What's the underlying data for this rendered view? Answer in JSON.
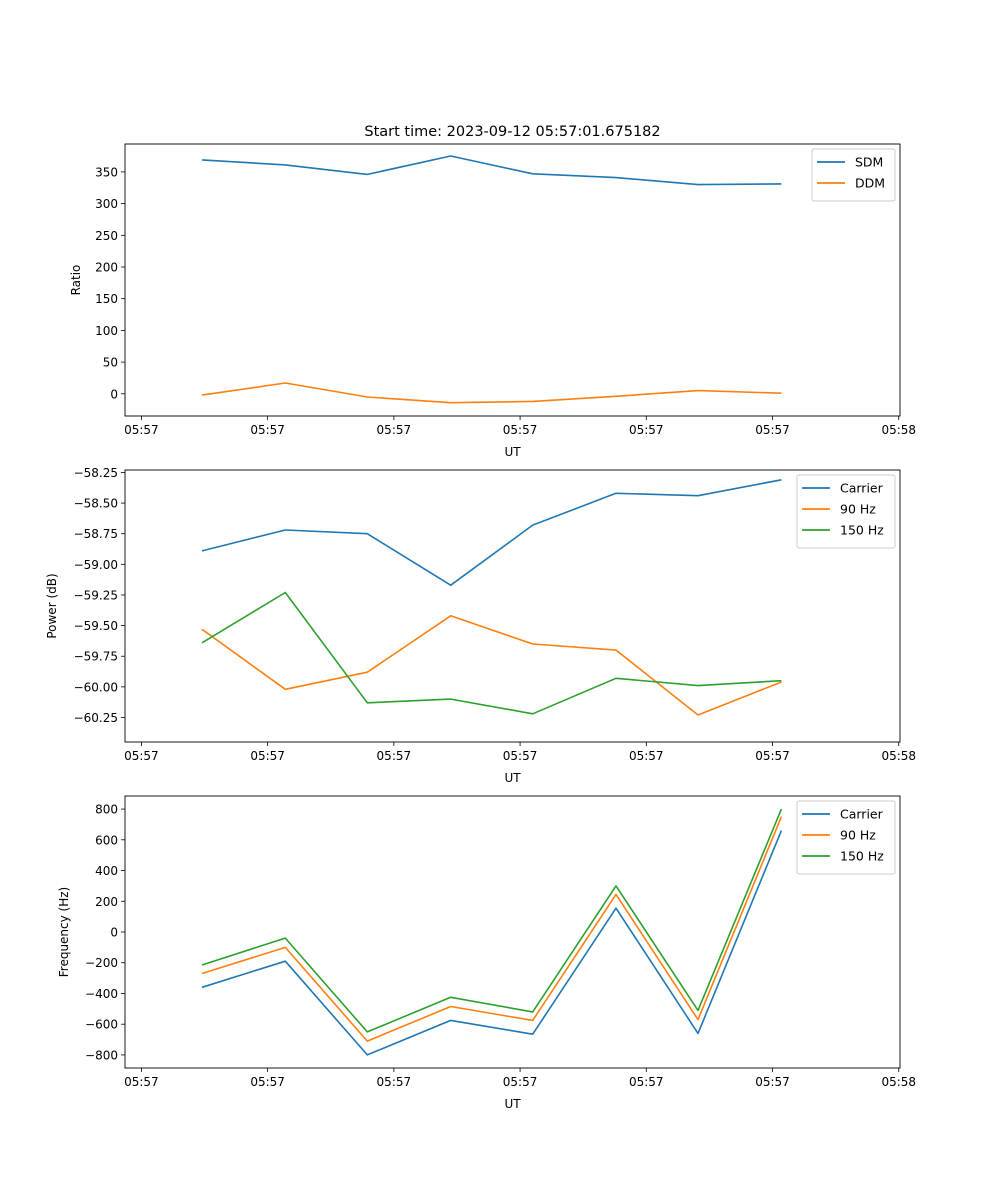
{
  "title": "Start time: 2023-09-12 05:57:01.675182",
  "chart_data": [
    {
      "type": "line",
      "xlabel": "UT",
      "ylabel": "Ratio",
      "x_units": "seconds after 05:57:00",
      "x": [
        4.8,
        11.4,
        17.9,
        24.5,
        31.0,
        37.6,
        44.1,
        50.7
      ],
      "xlim": [
        -1.3,
        60.1
      ],
      "xticks": [
        0,
        10,
        20,
        30,
        40,
        50,
        60
      ],
      "xtick_labels": [
        "05:57",
        "05:57",
        "05:57",
        "05:57",
        "05:57",
        "05:57",
        "05:58"
      ],
      "ylim": [
        -35,
        394
      ],
      "yticks": [
        0,
        50,
        100,
        150,
        200,
        250,
        300,
        350
      ],
      "ytick_labels": [
        "0",
        "50",
        "100",
        "150",
        "200",
        "250",
        "300",
        "350"
      ],
      "legend": "top-right",
      "series": [
        {
          "name": "SDM",
          "color": "#1f77b4",
          "values": [
            369,
            361,
            346,
            375,
            347,
            341,
            330,
            331
          ]
        },
        {
          "name": "DDM",
          "color": "#ff7f0e",
          "values": [
            -2,
            17,
            -5,
            -14,
            -12,
            -4,
            5,
            1
          ]
        }
      ]
    },
    {
      "type": "line",
      "xlabel": "UT",
      "ylabel": "Power (dB)",
      "x_units": "seconds after 05:57:00",
      "x": [
        4.8,
        11.4,
        17.9,
        24.5,
        31.0,
        37.6,
        44.1,
        50.7
      ],
      "xlim": [
        -1.3,
        60.1
      ],
      "xticks": [
        0,
        10,
        20,
        30,
        40,
        50,
        60
      ],
      "xtick_labels": [
        "05:57",
        "05:57",
        "05:57",
        "05:57",
        "05:57",
        "05:57",
        "05:58"
      ],
      "ylim": [
        -60.45,
        -58.23
      ],
      "yticks": [
        -60.25,
        -60.0,
        -59.75,
        -59.5,
        -59.25,
        -59.0,
        -58.75,
        -58.5,
        -58.25
      ],
      "ytick_labels": [
        "−60.25",
        "−60.00",
        "−59.75",
        "−59.50",
        "−59.25",
        "−59.00",
        "−58.75",
        "−58.50",
        "−58.25"
      ],
      "legend": "top-right",
      "series": [
        {
          "name": "Carrier",
          "color": "#1f77b4",
          "values": [
            -58.89,
            -58.72,
            -58.75,
            -59.17,
            -58.68,
            -58.42,
            -58.44,
            -58.31
          ]
        },
        {
          "name": "90 Hz",
          "color": "#ff7f0e",
          "values": [
            -59.53,
            -60.02,
            -59.88,
            -59.42,
            -59.65,
            -59.7,
            -60.23,
            -59.96
          ]
        },
        {
          "name": "150 Hz",
          "color": "#2ca02c",
          "values": [
            -59.64,
            -59.23,
            -60.13,
            -60.1,
            -60.22,
            -59.93,
            -59.99,
            -59.95
          ]
        }
      ]
    },
    {
      "type": "line",
      "xlabel": "UT",
      "ylabel": "Frequency (Hz)",
      "x_units": "seconds after 05:57:00",
      "x": [
        4.8,
        11.4,
        17.9,
        24.5,
        31.0,
        37.6,
        44.1,
        50.7
      ],
      "xlim": [
        -1.3,
        60.1
      ],
      "xticks": [
        0,
        10,
        20,
        30,
        40,
        50,
        60
      ],
      "xtick_labels": [
        "05:57",
        "05:57",
        "05:57",
        "05:57",
        "05:57",
        "05:57",
        "05:58"
      ],
      "ylim": [
        -885,
        885
      ],
      "yticks": [
        -800,
        -600,
        -400,
        -200,
        0,
        200,
        400,
        600,
        800
      ],
      "ytick_labels": [
        "−800",
        "−600",
        "−400",
        "−200",
        "0",
        "200",
        "400",
        "600",
        "800"
      ],
      "legend": "top-right",
      "series": [
        {
          "name": "Carrier",
          "color": "#1f77b4",
          "values": [
            -360,
            -190,
            -800,
            -575,
            -665,
            155,
            -660,
            660
          ]
        },
        {
          "name": "90 Hz",
          "color": "#ff7f0e",
          "values": [
            -270,
            -100,
            -710,
            -485,
            -575,
            245,
            -570,
            750
          ]
        },
        {
          "name": "150 Hz",
          "color": "#2ca02c",
          "values": [
            -215,
            -40,
            -650,
            -425,
            -520,
            300,
            -510,
            800
          ]
        }
      ]
    }
  ]
}
